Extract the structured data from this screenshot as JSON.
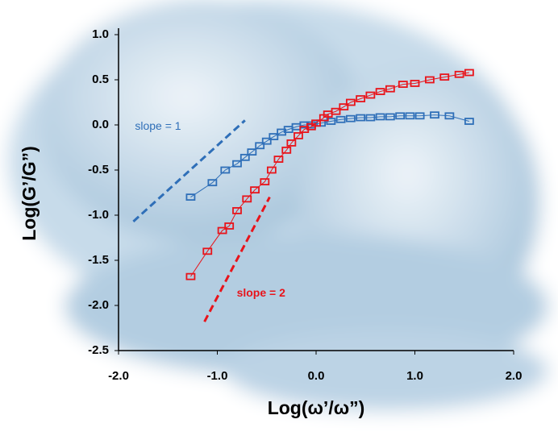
{
  "chart_data": {
    "type": "scatter",
    "xlabel": "Log(ω’/ω”)",
    "ylabel": "Log(G’/G”)",
    "xlim": [
      -2.0,
      2.0
    ],
    "ylim": [
      -2.5,
      1.0
    ],
    "xticks": [
      {
        "value": -2,
        "label": "-2.0"
      },
      {
        "value": -1,
        "label": "-1.0"
      },
      {
        "value": 0,
        "label": "0.0"
      },
      {
        "value": 1,
        "label": "1.0"
      },
      {
        "value": 2,
        "label": "2.0"
      }
    ],
    "yticks": [
      {
        "value": 1,
        "label": "1.0"
      },
      0.5,
      {
        "value": 0,
        "label": "0.0"
      },
      -0.5,
      {
        "value": -1,
        "label": "-1.0"
      },
      -1.5,
      {
        "value": -2,
        "label": "-2.0"
      },
      -2.5
    ],
    "series": [
      {
        "color": "#2f6fb8",
        "x": [
          -1.27,
          -1.05,
          -0.92,
          -0.8,
          -0.72,
          -0.65,
          -0.57,
          -0.5,
          -0.43,
          -0.35,
          -0.28,
          -0.2,
          -0.12,
          -0.05,
          0.05,
          0.15,
          0.25,
          0.35,
          0.45,
          0.55,
          0.65,
          0.75,
          0.85,
          0.95,
          1.05,
          1.2,
          1.35,
          1.55
        ],
        "values": [
          -0.8,
          -0.64,
          -0.5,
          -0.43,
          -0.36,
          -0.3,
          -0.23,
          -0.18,
          -0.13,
          -0.08,
          -0.05,
          -0.02,
          0.0,
          0.0,
          0.02,
          0.04,
          0.06,
          0.07,
          0.08,
          0.08,
          0.09,
          0.09,
          0.1,
          0.1,
          0.1,
          0.11,
          0.1,
          0.04
        ]
      },
      {
        "color": "#e8141b",
        "x": [
          -1.27,
          -1.1,
          -0.95,
          -0.88,
          -0.8,
          -0.7,
          -0.62,
          -0.52,
          -0.45,
          -0.38,
          -0.3,
          -0.25,
          -0.18,
          -0.12,
          -0.05,
          0.0,
          0.08,
          0.12,
          0.2,
          0.28,
          0.35,
          0.45,
          0.55,
          0.65,
          0.75,
          0.88,
          1.0,
          1.15,
          1.3,
          1.45,
          1.55
        ],
        "values": [
          -1.68,
          -1.4,
          -1.17,
          -1.12,
          -0.95,
          -0.82,
          -0.72,
          -0.63,
          -0.5,
          -0.38,
          -0.28,
          -0.2,
          -0.12,
          -0.05,
          -0.02,
          0.02,
          0.08,
          0.12,
          0.15,
          0.2,
          0.25,
          0.29,
          0.33,
          0.37,
          0.4,
          0.45,
          0.46,
          0.5,
          0.53,
          0.56,
          0.58
        ]
      }
    ],
    "reference_lines": [
      {
        "label": "slope = 1",
        "color": "#2f6fb8",
        "x": [
          -1.85,
          -0.72
        ],
        "values": [
          -1.07,
          0.05
        ]
      },
      {
        "label": "slope = 2",
        "color": "#e8141b",
        "x": [
          -1.13,
          -0.47
        ],
        "values": [
          -2.18,
          -0.8
        ]
      }
    ]
  }
}
